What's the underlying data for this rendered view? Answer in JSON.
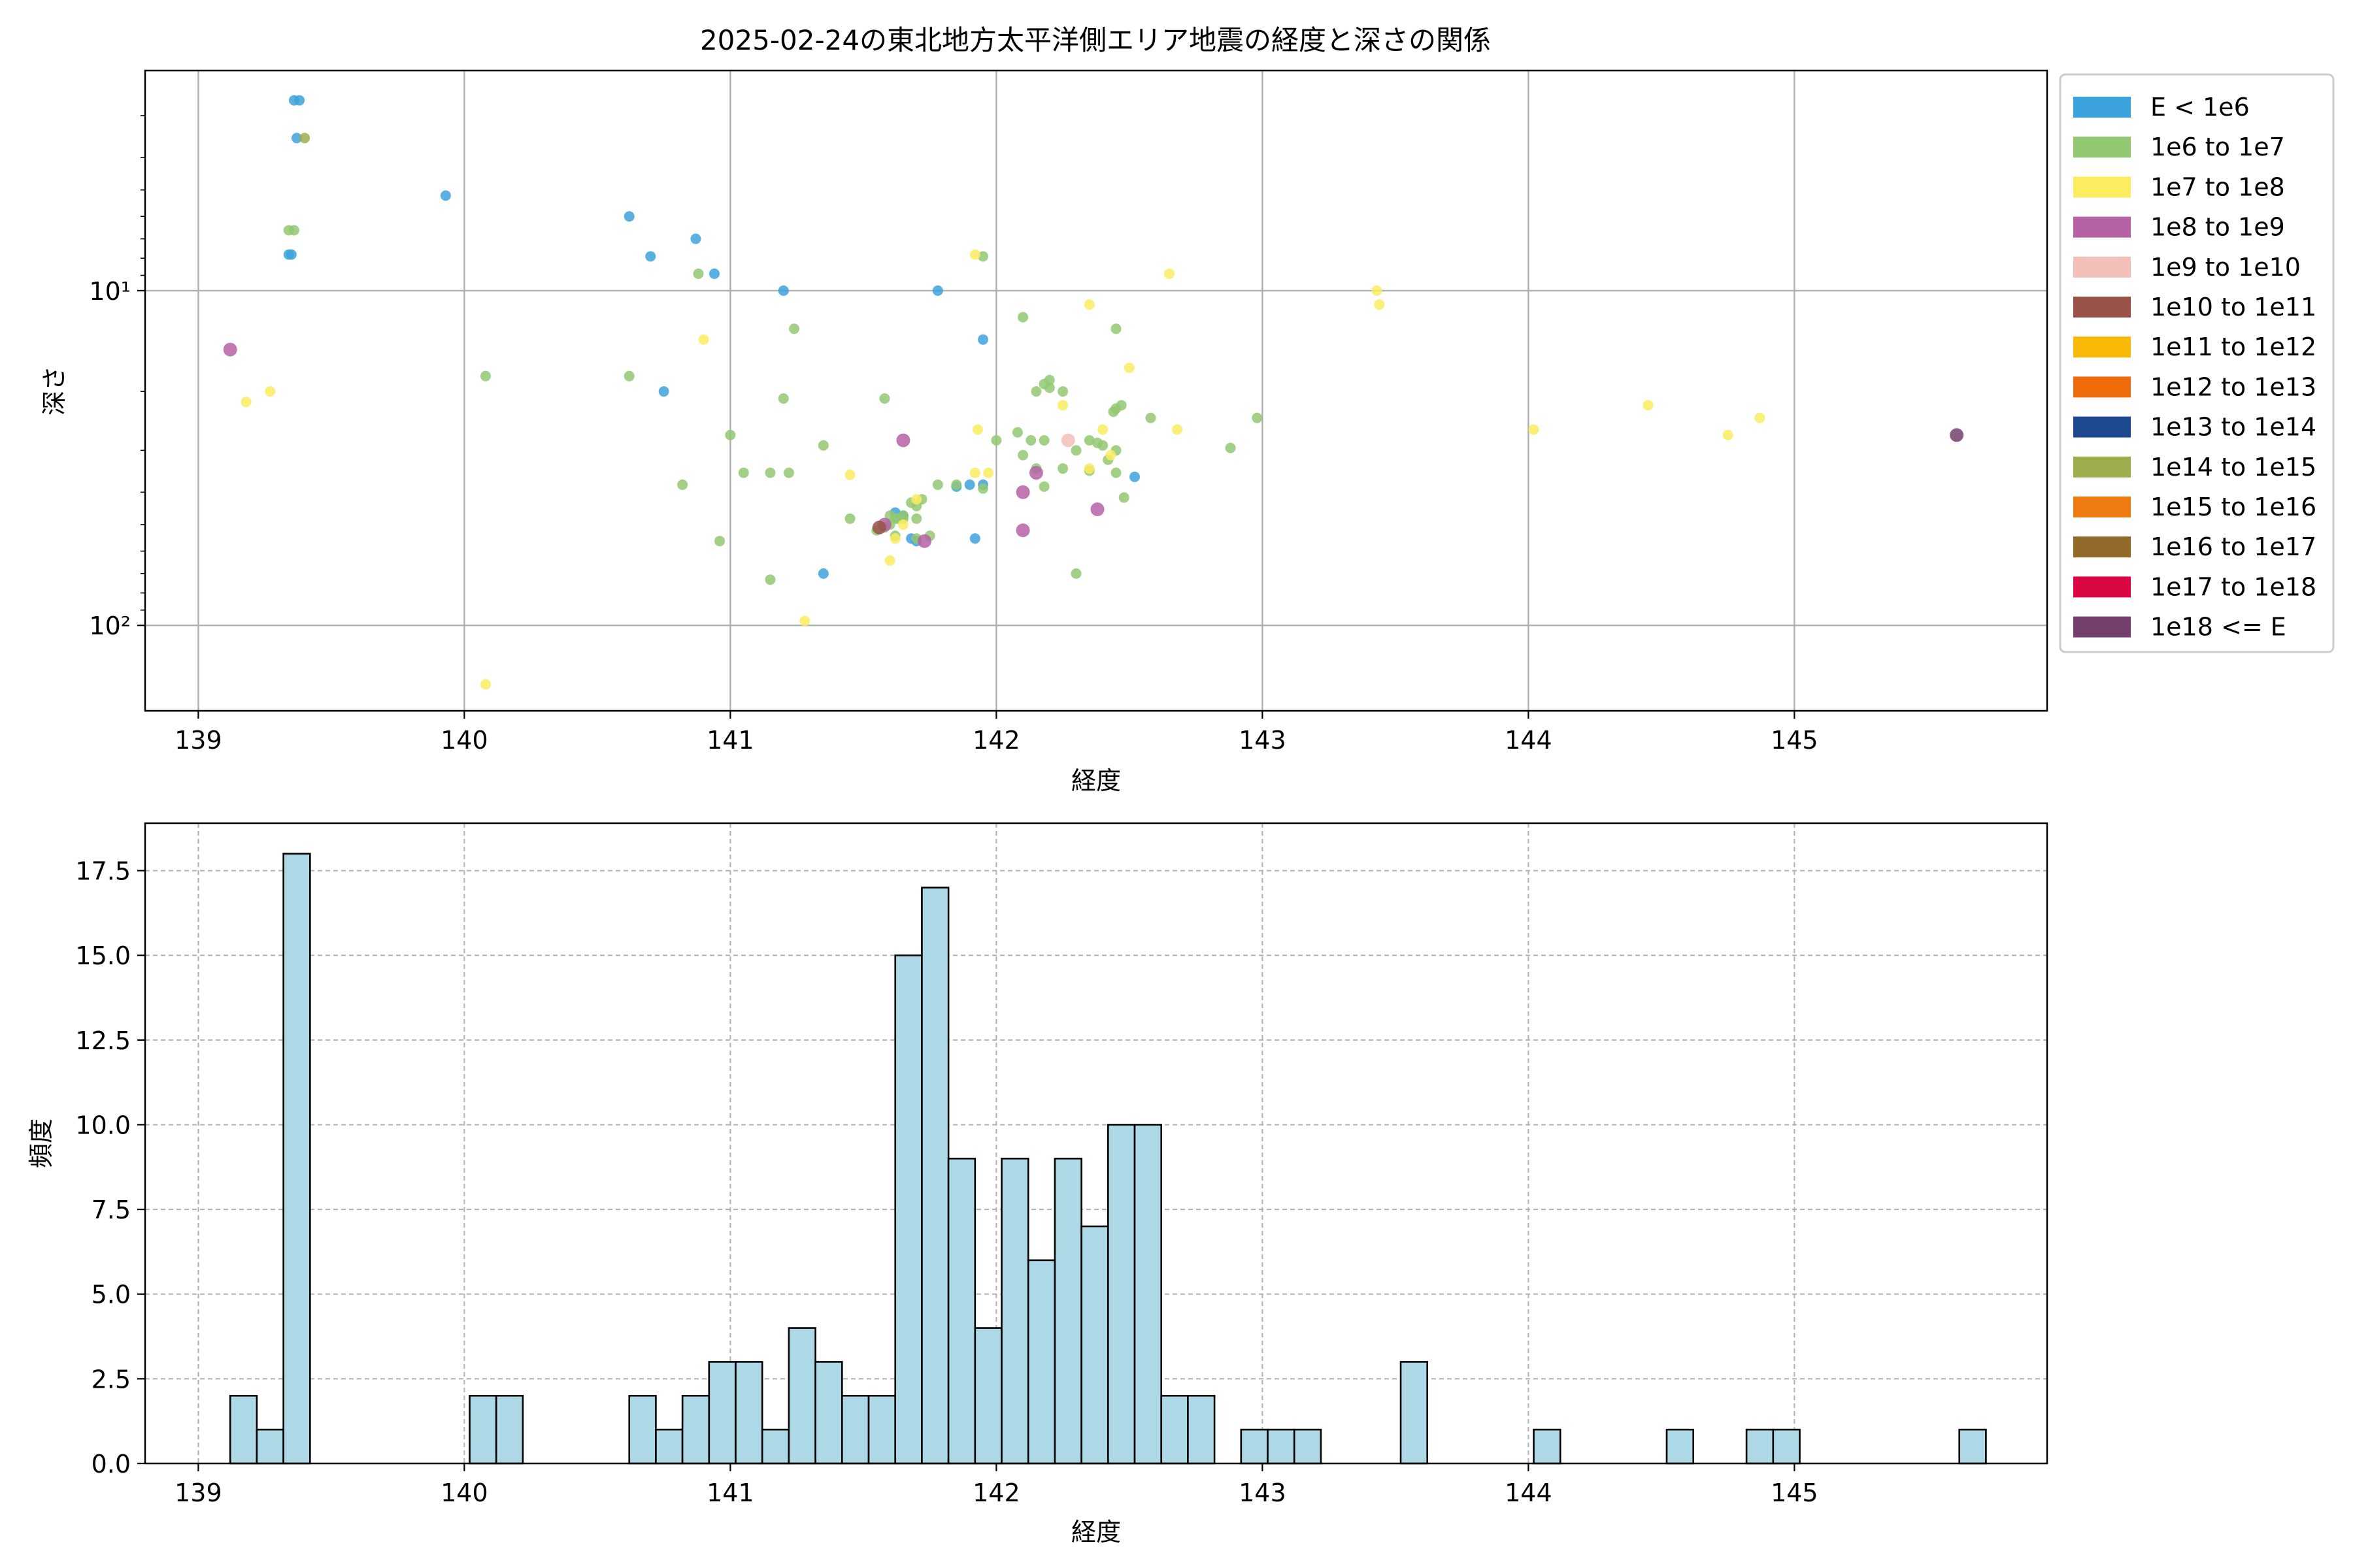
{
  "figure": {
    "title": "2025-02-24の東北地方太平洋側エリア地震の経度と深さの関係"
  },
  "chart_data": [
    {
      "type": "scatter",
      "title": "2025-02-24の東北地方太平洋側エリア地震の経度と深さの関係",
      "xlabel": "経度",
      "ylabel": "深さ",
      "xlim": [
        138.8,
        145.95
      ],
      "ylim": [
        180,
        2.2
      ],
      "yscale": "log",
      "y_inverted": true,
      "xticks": [
        139,
        140,
        141,
        142,
        143,
        144,
        145
      ],
      "yticks": [
        {
          "value": 10,
          "label": "10¹"
        },
        {
          "value": 100,
          "label": "10²"
        }
      ],
      "grid": true,
      "legend": {
        "placement": "outside-right",
        "entries": [
          {
            "label": "E < 1e6",
            "color": "#3ca2dc"
          },
          {
            "label": "1e6 to 1e7",
            "color": "#92c872"
          },
          {
            "label": "1e7 to 1e8",
            "color": "#fcec60"
          },
          {
            "label": "1e8 to 1e9",
            "color": "#b562a4"
          },
          {
            "label": "1e9 to 1e10",
            "color": "#f3bfb9"
          },
          {
            "label": "1e10 to 1e11",
            "color": "#985248"
          },
          {
            "label": "1e11 to 1e12",
            "color": "#f8b806"
          },
          {
            "label": "1e12 to 1e13",
            "color": "#ef6a0b"
          },
          {
            "label": "1e13 to 1e14",
            "color": "#1d4a8e"
          },
          {
            "label": "1e14 to 1e15",
            "color": "#9cae4e"
          },
          {
            "label": "1e15 to 1e16",
            "color": "#ee7a12"
          },
          {
            "label": "1e16 to 1e17",
            "color": "#93692a"
          },
          {
            "label": "1e17 to 1e18",
            "color": "#da0641"
          },
          {
            "label": "1e18 <= E",
            "color": "#74406b"
          }
        ]
      },
      "series": [
        {
          "name": "E < 1e6",
          "points": [
            [
              139.36,
              2.7
            ],
            [
              139.38,
              2.7
            ],
            [
              139.37,
              3.5
            ],
            [
              139.35,
              7.8
            ],
            [
              139.34,
              7.8
            ],
            [
              139.93,
              5.2
            ],
            [
              140.62,
              6.0
            ],
            [
              140.7,
              7.9
            ],
            [
              140.87,
              7.0
            ],
            [
              140.94,
              8.9
            ],
            [
              141.2,
              10.0
            ],
            [
              141.78,
              10.0
            ],
            [
              141.95,
              14.0
            ],
            [
              140.75,
              20.0
            ],
            [
              141.95,
              38.0
            ],
            [
              141.9,
              38.0
            ],
            [
              141.85,
              38.5
            ],
            [
              141.62,
              46.0
            ],
            [
              141.65,
              47.0
            ],
            [
              141.68,
              55.0
            ],
            [
              141.7,
              56.0
            ],
            [
              141.92,
              55.0
            ],
            [
              142.52,
              36.0
            ],
            [
              141.35,
              70.0
            ]
          ]
        },
        {
          "name": "1e6 to 1e7",
          "points": [
            [
              139.36,
              6.6
            ],
            [
              139.34,
              6.6
            ],
            [
              140.08,
              18.0
            ],
            [
              140.62,
              18.0
            ],
            [
              140.88,
              8.9
            ],
            [
              141.24,
              13.0
            ],
            [
              141.95,
              7.9
            ],
            [
              142.1,
              12.0
            ],
            [
              142.18,
              19.0
            ],
            [
              142.2,
              19.5
            ],
            [
              142.2,
              18.5
            ],
            [
              142.15,
              20.0
            ],
            [
              142.25,
              20.0
            ],
            [
              142.45,
              13.0
            ],
            [
              142.47,
              22.0
            ],
            [
              142.45,
              22.5
            ],
            [
              142.44,
              23.0
            ],
            [
              142.58,
              24.0
            ],
            [
              142.98,
              24.0
            ],
            [
              141.58,
              21.0
            ],
            [
              141.35,
              29.0
            ],
            [
              141.0,
              27.0
            ],
            [
              141.05,
              35.0
            ],
            [
              141.15,
              35.0
            ],
            [
              141.22,
              35.0
            ],
            [
              141.2,
              21.0
            ],
            [
              141.85,
              38.0
            ],
            [
              141.95,
              39.0
            ],
            [
              142.0,
              28.0
            ],
            [
              142.08,
              26.5
            ],
            [
              142.13,
              28.0
            ],
            [
              142.18,
              28.0
            ],
            [
              142.1,
              31.0
            ],
            [
              142.15,
              34.0
            ],
            [
              142.18,
              38.5
            ],
            [
              142.25,
              34.0
            ],
            [
              142.3,
              30.0
            ],
            [
              142.35,
              28.0
            ],
            [
              142.38,
              28.5
            ],
            [
              142.4,
              29.0
            ],
            [
              142.45,
              30.0
            ],
            [
              142.42,
              32.0
            ],
            [
              142.35,
              34.5
            ],
            [
              142.45,
              35.0
            ],
            [
              142.48,
              41.5
            ],
            [
              142.88,
              29.5
            ],
            [
              141.15,
              73.0
            ],
            [
              140.96,
              56.0
            ],
            [
              140.82,
              38.0
            ],
            [
              141.45,
              48.0
            ],
            [
              141.6,
              47.0
            ],
            [
              141.62,
              48.0
            ],
            [
              141.63,
              48.0
            ],
            [
              141.65,
              47.0
            ],
            [
              141.68,
              43.0
            ],
            [
              141.7,
              48.0
            ],
            [
              141.75,
              54.0
            ],
            [
              141.78,
              38.0
            ],
            [
              141.72,
              42.0
            ],
            [
              141.7,
              44.0
            ],
            [
              141.55,
              52.0
            ],
            [
              141.58,
              51.0
            ],
            [
              141.6,
              50.0
            ],
            [
              141.62,
              54.0
            ],
            [
              141.65,
              48.0
            ],
            [
              142.3,
              70.0
            ],
            [
              141.7,
              55.0
            ]
          ]
        },
        {
          "name": "1e7 to 1e8",
          "points": [
            [
              139.18,
              21.5
            ],
            [
              139.27,
              20.0
            ],
            [
              140.9,
              14.0
            ],
            [
              141.92,
              7.8
            ],
            [
              142.35,
              11.0
            ],
            [
              142.65,
              8.9
            ],
            [
              143.43,
              10.0
            ],
            [
              143.44,
              11.0
            ],
            [
              141.93,
              26.0
            ],
            [
              141.97,
              35.0
            ],
            [
              142.4,
              26.0
            ],
            [
              142.5,
              17.0
            ],
            [
              142.35,
              34.0
            ],
            [
              142.43,
              31.0
            ],
            [
              142.25,
              22.0
            ],
            [
              142.68,
              26.0
            ],
            [
              144.02,
              26.0
            ],
            [
              144.45,
              22.0
            ],
            [
              144.75,
              27.0
            ],
            [
              144.87,
              24.0
            ],
            [
              141.45,
              35.5
            ],
            [
              141.28,
              97.0
            ],
            [
              140.08,
              150.0
            ],
            [
              141.6,
              64.0
            ],
            [
              141.62,
              55.0
            ],
            [
              141.65,
              50.0
            ],
            [
              141.7,
              42.0
            ],
            [
              141.92,
              35.0
            ]
          ]
        },
        {
          "name": "1e8 to 1e9",
          "points": [
            [
              139.12,
              15.0
            ],
            [
              141.65,
              28.0
            ],
            [
              142.1,
              40.0
            ],
            [
              142.15,
              35.0
            ],
            [
              142.38,
              45.0
            ],
            [
              142.1,
              52.0
            ],
            [
              141.73,
              56.0
            ],
            [
              141.58,
              50.0
            ]
          ]
        },
        {
          "name": "1e9 to 1e10",
          "points": [
            [
              142.27,
              28.0
            ]
          ]
        },
        {
          "name": "1e10 to 1e11",
          "points": [
            [
              141.56,
              51.0
            ]
          ]
        },
        {
          "name": "1e14 to 1e15",
          "points": [
            [
              139.4,
              3.5
            ]
          ]
        },
        {
          "name": "1e18 <= E",
          "points": [
            [
              145.61,
              27.0
            ]
          ]
        }
      ]
    },
    {
      "type": "bar",
      "subtype": "histogram",
      "xlabel": "経度",
      "ylabel": "頻度",
      "xlim": [
        138.8,
        145.95
      ],
      "ylim": [
        0,
        18.9
      ],
      "xticks": [
        139,
        140,
        141,
        142,
        143,
        144,
        145
      ],
      "yticks": [
        "0.0",
        "2.5",
        "5.0",
        "7.5",
        "10.0",
        "12.5",
        "15.0",
        "17.5"
      ],
      "grid": true,
      "bar_color": "#add8e6",
      "bin_start": 139.12,
      "bin_width": 0.1,
      "counts": [
        2,
        1,
        18,
        0,
        0,
        0,
        0,
        0,
        0,
        2,
        2,
        0,
        0,
        0,
        0,
        2,
        1,
        2,
        3,
        3,
        1,
        4,
        3,
        2,
        2,
        15,
        17,
        9,
        4,
        9,
        6,
        9,
        7,
        10,
        10,
        2,
        2,
        0,
        1,
        1,
        1,
        0,
        0,
        0,
        3,
        0,
        0,
        0,
        0,
        1,
        0,
        0,
        0,
        0,
        1,
        0,
        0,
        1,
        1,
        0,
        0,
        0,
        0,
        0,
        0,
        1
      ]
    }
  ]
}
